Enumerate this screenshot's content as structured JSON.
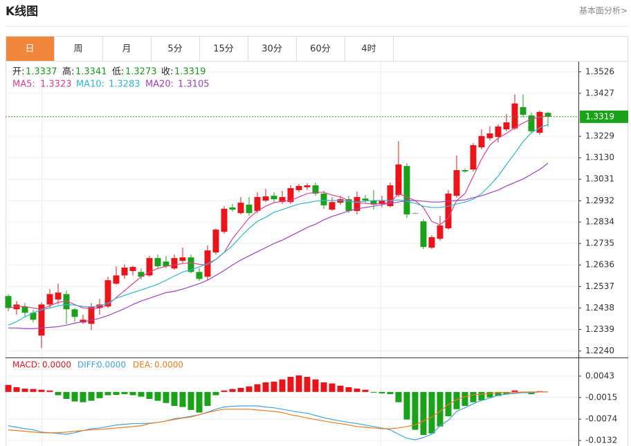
{
  "header": {
    "title": "K线图",
    "link": "基本面分析>"
  },
  "tabs": [
    "日",
    "周",
    "月",
    "5分",
    "15分",
    "30分",
    "60分",
    "4时"
  ],
  "active_tab": 0,
  "chart_data": [
    {
      "type": "candlestick",
      "info": [
        {
          "label": "开:",
          "value": 1.3337
        },
        {
          "label": "高:",
          "value": 1.3341
        },
        {
          "label": "低:",
          "value": 1.3273
        },
        {
          "label": "收:",
          "value": 1.3319
        }
      ],
      "info_color": "#1a9a1a",
      "up_color": "#e8141a",
      "down_color": "#1aa31a",
      "flat_color": "#999999",
      "ylim": [
        1.221,
        1.357
      ],
      "yticks": [
        1.3526,
        1.3427,
        1.3229,
        {
          "value": 1.313,
          "label": "1.3130"
        },
        1.3031,
        1.2932,
        1.2834,
        1.2735,
        1.2636,
        1.2537,
        1.2438,
        1.2339,
        {
          "value": 1.224,
          "label": "1.2240"
        }
      ],
      "grid": true,
      "last_price": 1.3319,
      "last_price_color": "#1aa31a",
      "open": [
        1.2493,
        1.2432,
        1.2445,
        1.2416,
        1.2311,
        1.2454,
        1.2477,
        1.2502,
        1.2432,
        1.2371,
        1.2365,
        1.2438,
        1.2445,
        1.255,
        1.2588,
        1.2608,
        1.2604,
        1.2588,
        1.2668,
        1.2652,
        1.262,
        1.2655,
        1.2671,
        1.2604,
        1.2582,
        1.2694,
        1.2789,
        1.2901,
        1.2875,
        1.2914,
        1.2885,
        1.2933,
        1.2955,
        1.2926,
        1.2926,
        1.2981,
        1.2994,
        1.3003,
        1.2965,
        1.2891,
        1.2923,
        1.2939,
        1.2885,
        1.2942,
        1.2933,
        1.2917,
        1.2907,
        1.2958,
        1.3092,
        1.2875,
        1.2837,
        1.2716,
        1.2757,
        1.2805,
        1.2955,
        1.3073,
        1.3076,
        1.3178,
        1.322,
        1.3226,
        1.3261,
        1.3265,
        1.3363,
        1.3325,
        1.3245,
        1.3337
      ],
      "high": [
        1.2502,
        1.247,
        1.2461,
        1.2429,
        1.2464,
        1.2525,
        1.255,
        1.2518,
        1.2438,
        1.2407,
        1.2461,
        1.248,
        1.2582,
        1.263,
        1.2639,
        1.2633,
        1.262,
        1.2678,
        1.2684,
        1.2678,
        1.2684,
        1.2716,
        1.2684,
        1.262,
        1.2725,
        1.2805,
        1.2907,
        1.2917,
        1.2949,
        1.2949,
        1.2971,
        1.2987,
        1.2971,
        1.2978,
        1.3003,
        1.301,
        1.3013,
        1.3016,
        1.2978,
        1.2949,
        1.2955,
        1.2955,
        1.2974,
        1.2958,
        1.2981,
        1.2955,
        1.3016,
        1.3207,
        1.3105,
        1.2879,
        1.2847,
        1.2773,
        1.2863,
        1.2981,
        1.314,
        1.308,
        1.3198,
        1.3261,
        1.3274,
        1.3284,
        1.3332,
        1.3421,
        1.3421,
        1.3338,
        1.3348,
        1.3341
      ],
      "low": [
        1.2423,
        1.2407,
        1.2397,
        1.2371,
        1.2253,
        1.2438,
        1.2454,
        1.2365,
        1.2375,
        1.2365,
        1.2336,
        1.2407,
        1.2438,
        1.2544,
        1.2572,
        1.2588,
        1.2569,
        1.2582,
        1.262,
        1.262,
        1.2614,
        1.2646,
        1.2598,
        1.2563,
        1.2566,
        1.2684,
        1.278,
        1.2882,
        1.2869,
        1.2863,
        1.2875,
        1.2926,
        1.2926,
        1.2917,
        1.2917,
        1.2971,
        1.2981,
        1.2955,
        1.2895,
        1.2885,
        1.2914,
        1.2875,
        1.2869,
        1.2923,
        1.2891,
        1.2901,
        1.2901,
        1.2949,
        1.2853,
        1.2872,
        1.271,
        1.271,
        1.2748,
        1.2799,
        1.2946,
        1.3061,
        1.3067,
        1.3169,
        1.321,
        1.3201,
        1.3252,
        1.3258,
        1.3316,
        1.3242,
        1.3236,
        1.3273
      ],
      "close": [
        1.2438,
        1.2454,
        1.2416,
        1.2384,
        1.2454,
        1.2502,
        1.2509,
        1.2432,
        1.2397,
        1.2384,
        1.2445,
        1.2454,
        1.2566,
        1.2588,
        1.2624,
        1.2627,
        1.2582,
        1.2668,
        1.263,
        1.263,
        1.2668,
        1.2671,
        1.2604,
        1.2572,
        1.2703,
        1.2799,
        1.2895,
        1.2891,
        1.2923,
        1.2875,
        1.2949,
        1.2952,
        1.2939,
        1.2949,
        1.299,
        1.3,
        1.3003,
        1.2965,
        1.2911,
        1.2926,
        1.2939,
        1.2885,
        1.2949,
        1.2933,
        1.2914,
        1.2933,
        1.3003,
        1.3099,
        1.2869,
        1.2875,
        1.2719,
        1.2764,
        1.2818,
        1.2965,
        1.3073,
        1.3067,
        1.3188,
        1.323,
        1.3242,
        1.3274,
        1.3293,
        1.338,
        1.3328,
        1.3252,
        1.3341,
        1.3319
      ],
      "series": [
        {
          "name": "MA5:",
          "last_value": 1.3323,
          "color": "#e0408c",
          "values": [
            1.2438,
            1.2445,
            1.2445,
            1.2438,
            1.2432,
            1.2448,
            1.2464,
            1.247,
            1.2454,
            1.2438,
            1.2435,
            1.2438,
            1.2454,
            1.2486,
            1.2518,
            1.255,
            1.2582,
            1.2604,
            1.262,
            1.263,
            1.2636,
            1.2643,
            1.2646,
            1.2639,
            1.2636,
            1.2662,
            1.2694,
            1.2757,
            1.2805,
            1.2853,
            1.2885,
            1.2907,
            1.2923,
            1.293,
            1.2933,
            1.2949,
            1.2965,
            1.2971,
            1.2971,
            1.2958,
            1.2949,
            1.2933,
            1.2923,
            1.292,
            1.2917,
            1.292,
            1.2923,
            1.2965,
            1.2949,
            1.2933,
            1.2901,
            1.2837,
            1.2821,
            1.2853,
            1.2933,
            1.2965,
            1.3045,
            1.3124,
            1.3188,
            1.322,
            1.3242,
            1.3268,
            1.329,
            1.3309,
            1.3316,
            1.3323
          ]
        },
        {
          "name": "MA10:",
          "last_value": 1.3283,
          "color": "#2eb6d6",
          "values": [
            1.2359,
            1.2375,
            1.2397,
            1.2416,
            1.2429,
            1.2438,
            1.2448,
            1.2454,
            1.2451,
            1.2445,
            1.2442,
            1.2448,
            1.2461,
            1.2483,
            1.2496,
            1.2509,
            1.2521,
            1.2534,
            1.2547,
            1.2566,
            1.2585,
            1.2604,
            1.2614,
            1.2627,
            1.2643,
            1.2662,
            1.2694,
            1.2725,
            1.2767,
            1.2805,
            1.2837,
            1.2856,
            1.2879,
            1.2891,
            1.2904,
            1.2917,
            1.2923,
            1.293,
            1.2933,
            1.2933,
            1.2933,
            1.293,
            1.2926,
            1.293,
            1.2933,
            1.2933,
            1.2933,
            1.2936,
            1.293,
            1.292,
            1.2907,
            1.2901,
            1.2901,
            1.2907,
            1.2917,
            1.2926,
            1.2939,
            1.2965,
            1.3003,
            1.3045,
            1.3099,
            1.315,
            1.3204,
            1.3245,
            1.3268,
            1.3283
          ]
        },
        {
          "name": "MA20:",
          "last_value": 1.3105,
          "color": "#a040c0",
          "values": [
            1.2346,
            1.2346,
            1.2343,
            1.2343,
            1.2346,
            1.2349,
            1.2352,
            1.2359,
            1.2368,
            1.2375,
            1.2381,
            1.2391,
            1.2403,
            1.2419,
            1.2435,
            1.2454,
            1.247,
            1.2483,
            1.2496,
            1.2509,
            1.2515,
            1.2525,
            1.2537,
            1.255,
            1.2566,
            1.2588,
            1.2611,
            1.2636,
            1.2659,
            1.2678,
            1.2697,
            1.2716,
            1.2735,
            1.2751,
            1.277,
            1.2789,
            1.2809,
            1.2824,
            1.2844,
            1.286,
            1.2872,
            1.2885,
            1.2895,
            1.2901,
            1.2907,
            1.2914,
            1.292,
            1.2926,
            1.2933,
            1.2933,
            1.293,
            1.2926,
            1.2926,
            1.293,
            1.2933,
            1.2936,
            1.2946,
            1.2955,
            1.2968,
            1.2981,
            1.3,
            1.3016,
            1.3032,
            1.3054,
            1.3076,
            1.3105
          ]
        }
      ]
    },
    {
      "type": "macd",
      "ylim": [
        -0.0147,
        0.0088
      ],
      "yticks": [
        0.0043,
        -0.0015,
        -0.0074,
        -0.0132
      ],
      "histogram": {
        "name": "MACD:",
        "label": "0.0000",
        "color": "#e8141a",
        "up_color": "#e8141a",
        "down_color": "#1aa31a",
        "values": [
          0.0019,
          0.0013,
          0.0009,
          0.0008,
          0.0006,
          0.0004,
          -0.0009,
          -0.0019,
          -0.0026,
          -0.0028,
          -0.0024,
          -0.0017,
          -0.0009,
          -0.0008,
          -0.0006,
          -0.0009,
          -0.0013,
          -0.0019,
          -0.0024,
          -0.003,
          -0.0038,
          -0.0041,
          -0.0049,
          -0.0056,
          -0.0038,
          -0.0009,
          0.0004,
          0.0008,
          0.0011,
          0.0015,
          0.0021,
          0.0026,
          0.0028,
          0.0034,
          0.0041,
          0.0045,
          0.0041,
          0.0034,
          0.0026,
          0.0023,
          0.0017,
          0.0013,
          0.0009,
          0.0006,
          -0.0002,
          -0.0004,
          -0.0006,
          -0.0028,
          -0.0075,
          -0.0103,
          -0.0117,
          -0.0113,
          -0.0094,
          -0.0066,
          -0.0047,
          -0.0038,
          -0.0028,
          -0.0023,
          -0.0015,
          -0.0011,
          -0.0006,
          0.0004,
          -0.0002,
          -0.0006,
          0.0002,
          0
        ]
      },
      "series": [
        {
          "name": "DIFF:",
          "label": "0.0000",
          "color": "#3fa3e0",
          "values": [
            -0.0092,
            -0.0096,
            -0.01,
            -0.0103,
            -0.0109,
            -0.0111,
            -0.0113,
            -0.0115,
            -0.0111,
            -0.0105,
            -0.01,
            -0.0098,
            -0.0094,
            -0.009,
            -0.0088,
            -0.0086,
            -0.0086,
            -0.0085,
            -0.0083,
            -0.0079,
            -0.0073,
            -0.007,
            -0.0066,
            -0.0062,
            -0.0055,
            -0.0047,
            -0.0041,
            -0.0039,
            -0.0038,
            -0.0038,
            -0.0038,
            -0.0041,
            -0.0043,
            -0.0047,
            -0.0051,
            -0.0055,
            -0.0058,
            -0.0064,
            -0.007,
            -0.0075,
            -0.0079,
            -0.0083,
            -0.0086,
            -0.009,
            -0.0094,
            -0.0098,
            -0.0103,
            -0.0115,
            -0.0126,
            -0.013,
            -0.0124,
            -0.0115,
            -0.0092,
            -0.0077,
            -0.0053,
            -0.0043,
            -0.0032,
            -0.0023,
            -0.0017,
            -0.0009,
            -0.0006,
            -0.0004,
            -0.0002,
            -0.0002,
            0,
            0
          ]
        },
        {
          "name": "DEA:",
          "label": "0.0000",
          "color": "#f07a1a",
          "values": [
            -0.0103,
            -0.0105,
            -0.0107,
            -0.0109,
            -0.0111,
            -0.0111,
            -0.0111,
            -0.0109,
            -0.0107,
            -0.0105,
            -0.0103,
            -0.0102,
            -0.01,
            -0.0098,
            -0.0096,
            -0.0094,
            -0.0092,
            -0.0086,
            -0.0083,
            -0.0079,
            -0.0075,
            -0.0071,
            -0.0068,
            -0.0062,
            -0.0056,
            -0.0051,
            -0.0047,
            -0.0047,
            -0.0047,
            -0.0047,
            -0.0049,
            -0.0051,
            -0.0053,
            -0.0056,
            -0.0062,
            -0.0066,
            -0.0071,
            -0.0075,
            -0.0079,
            -0.0083,
            -0.0086,
            -0.009,
            -0.0094,
            -0.0096,
            -0.0098,
            -0.01,
            -0.01,
            -0.0098,
            -0.0094,
            -0.009,
            -0.0079,
            -0.0068,
            -0.0053,
            -0.0034,
            -0.0021,
            -0.0013,
            -0.0008,
            -0.0006,
            -0.0004,
            -0.0002,
            -0.0002,
            -0.0002,
            0,
            0,
            0,
            0
          ]
        }
      ]
    }
  ]
}
